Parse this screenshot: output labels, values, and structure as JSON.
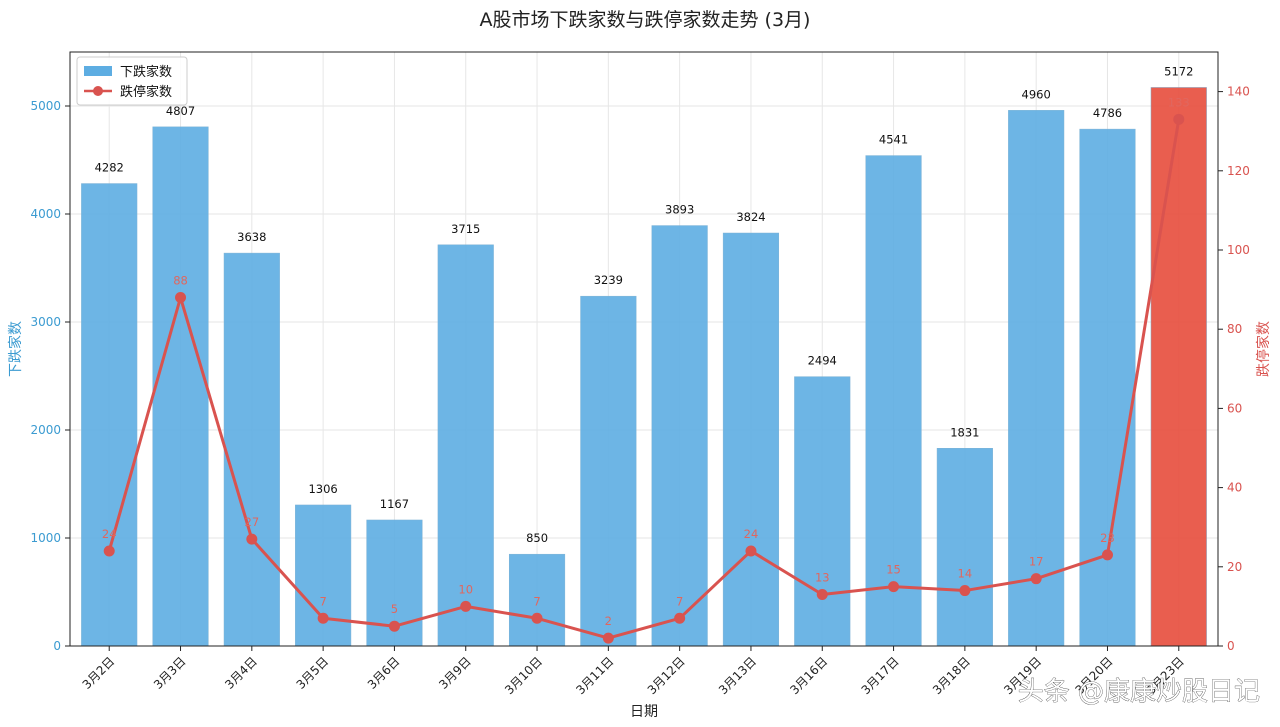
{
  "chart_data": {
    "type": "bar",
    "title": "A股市场下跌家数与跌停家数走势 (3月)",
    "xlabel": "日期",
    "ylabel": "下跌家数",
    "y2label": "跌停家数",
    "categories": [
      "3月2日",
      "3月3日",
      "3月4日",
      "3月5日",
      "3月6日",
      "3月9日",
      "3月10日",
      "3月11日",
      "3月12日",
      "3月13日",
      "3月16日",
      "3月17日",
      "3月18日",
      "3月19日",
      "3月20日",
      "3月23日"
    ],
    "series": [
      {
        "name": "下跌家数",
        "type": "bar",
        "axis": "left",
        "values": [
          4282,
          4807,
          3638,
          1306,
          1167,
          3715,
          850,
          3239,
          3893,
          3824,
          2494,
          4541,
          1831,
          4960,
          4786,
          5172
        ],
        "color": "#5dade2",
        "highlight_color": "#e74c3c",
        "highlight_index": 15
      },
      {
        "name": "跌停家数",
        "type": "line",
        "axis": "right",
        "values": [
          24,
          88,
          27,
          7,
          5,
          10,
          7,
          2,
          7,
          24,
          13,
          15,
          14,
          17,
          23,
          133
        ],
        "color": "#d9534f"
      }
    ],
    "ylim": [
      0,
      5500
    ],
    "y2lim": [
      0,
      150
    ],
    "yticks": [
      0,
      1000,
      2000,
      3000,
      4000,
      5000
    ],
    "y2ticks": [
      0,
      20,
      40,
      60,
      80,
      100,
      120,
      140
    ],
    "grid": true,
    "legend": "top-left"
  },
  "watermark": "头条 @康康炒股日记"
}
